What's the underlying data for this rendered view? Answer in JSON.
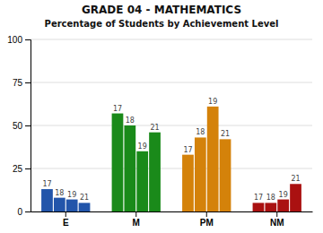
{
  "chart_data": {
    "type": "bar",
    "title": "GRADE 04 - MATHEMATICS",
    "subtitle": "Percentage of Students by Achievement Level",
    "categories": [
      "E",
      "M",
      "PM",
      "NM"
    ],
    "series": [
      {
        "name": "17",
        "values": [
          13,
          57,
          33,
          5
        ]
      },
      {
        "name": "18",
        "values": [
          8,
          50,
          43,
          5
        ]
      },
      {
        "name": "19",
        "values": [
          7,
          35,
          61,
          7
        ]
      },
      {
        "name": "21",
        "values": [
          5,
          46,
          42,
          16
        ]
      }
    ],
    "colors": [
      "#2255aa",
      "#1a8a1a",
      "#d4820a",
      "#aa1111"
    ],
    "ylim": [
      0,
      100
    ],
    "yticks": [
      0,
      25,
      50,
      75,
      100
    ],
    "grid": true
  }
}
